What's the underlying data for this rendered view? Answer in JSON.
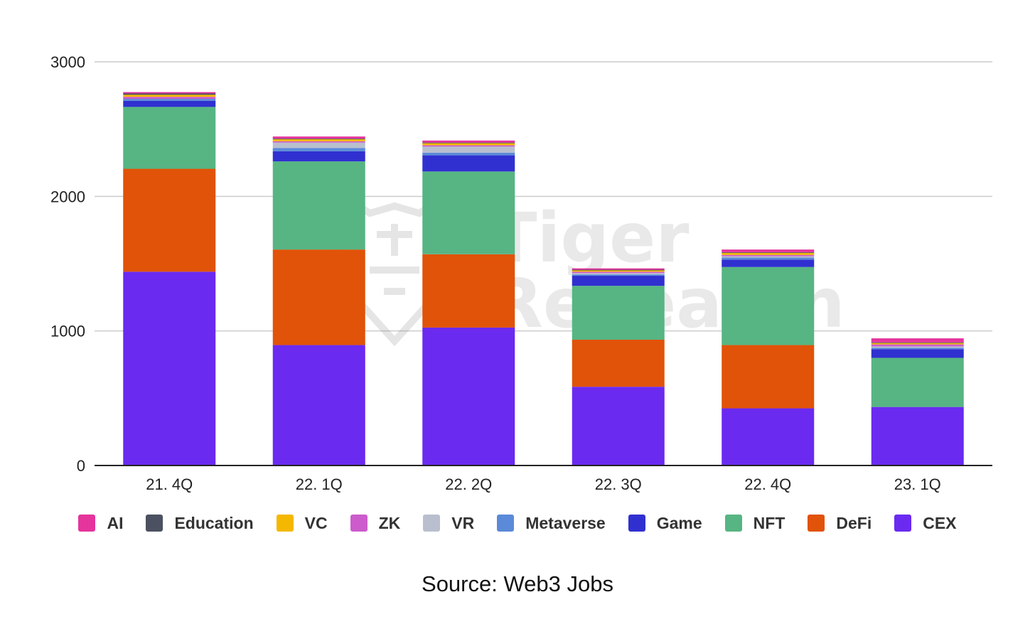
{
  "chart_data": {
    "type": "bar",
    "stacked": true,
    "title": "",
    "xlabel": "",
    "ylabel": "",
    "ylim": [
      0,
      3000
    ],
    "yticks": [
      0,
      1000,
      2000,
      3000
    ],
    "grid": true,
    "legend_position": "bottom",
    "categories": [
      "21. 4Q",
      "22. 1Q",
      "22. 2Q",
      "22. 3Q",
      "22. 4Q",
      "23. 1Q"
    ],
    "series": [
      {
        "name": "CEX",
        "color": "#6a2af0",
        "values": [
          1440,
          895,
          1025,
          585,
          425,
          435
        ]
      },
      {
        "name": "DeFi",
        "color": "#e05308",
        "values": [
          765,
          710,
          545,
          350,
          470,
          0
        ]
      },
      {
        "name": "NFT",
        "color": "#56b583",
        "values": [
          460,
          655,
          615,
          400,
          580,
          365
        ]
      },
      {
        "name": "Game",
        "color": "#3030d0",
        "values": [
          45,
          75,
          120,
          75,
          55,
          65
        ]
      },
      {
        "name": "Metaverse",
        "color": "#5b8ad8",
        "values": [
          15,
          25,
          20,
          10,
          15,
          10
        ]
      },
      {
        "name": "VR",
        "color": "#b9bfce",
        "values": [
          0,
          40,
          45,
          10,
          10,
          10
        ]
      },
      {
        "name": "ZK",
        "color": "#cc5ccc",
        "values": [
          15,
          10,
          10,
          10,
          10,
          15
        ]
      },
      {
        "name": "VC",
        "color": "#f5b800",
        "values": [
          15,
          15,
          15,
          10,
          15,
          10
        ]
      },
      {
        "name": "Education",
        "color": "#4b5160",
        "values": [
          10,
          5,
          5,
          5,
          5,
          5
        ]
      },
      {
        "name": "AI",
        "color": "#e5349c",
        "values": [
          10,
          15,
          15,
          10,
          20,
          30
        ]
      }
    ],
    "legend_order": [
      "AI",
      "Education",
      "VC",
      "ZK",
      "VR",
      "Metaverse",
      "Game",
      "NFT",
      "DeFi",
      "CEX"
    ],
    "watermark": "Tiger Research"
  },
  "source_text": "Source: Web3 Jobs"
}
